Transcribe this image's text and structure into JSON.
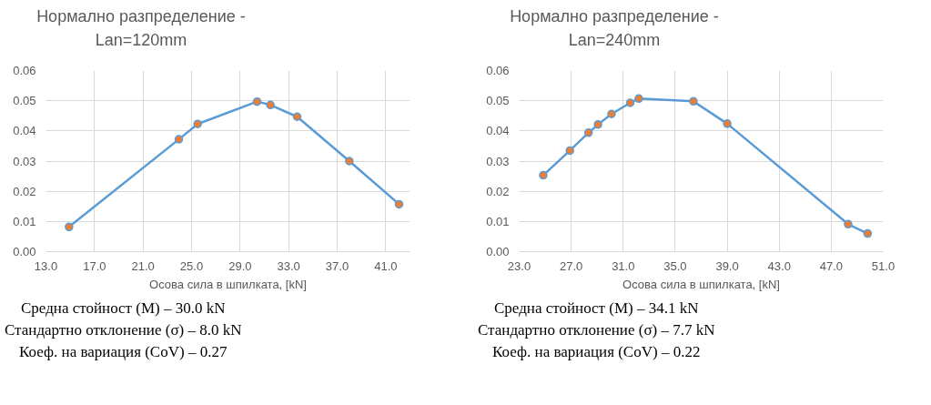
{
  "chart_data": [
    {
      "type": "line",
      "title": "Нормално разпределение - Lan=120mm",
      "xlabel": "Осова сила в шпилката, [kN]",
      "x": [
        14.9,
        23.95,
        25.5,
        30.4,
        31.5,
        33.7,
        38.0,
        42.1
      ],
      "series": [
        {
          "color": "#5b9bd5",
          "colors": [
            "#ed7d31",
            "#ed7d31",
            "#ed7d31",
            "#ed7d31",
            "#ed7d31",
            "#ed7d31",
            "#ed7d31",
            "#ed7d31"
          ],
          "values": [
            0.0082,
            0.0372,
            0.0423,
            0.0497,
            0.0486,
            0.0447,
            0.03,
            0.0157
          ]
        }
      ],
      "xlim": [
        13,
        43
      ],
      "xticks": [
        {
          "value": 13,
          "label": "13.0"
        },
        {
          "value": 17,
          "label": "17.0"
        },
        {
          "value": 21,
          "label": "21.0"
        },
        {
          "value": 25,
          "label": "25.0"
        },
        {
          "value": 29,
          "label": "29.0"
        },
        {
          "value": 33,
          "label": "33.0"
        },
        {
          "value": 37,
          "label": "37.0"
        },
        {
          "value": 41,
          "label": "41.0"
        }
      ],
      "ylim": [
        0,
        0.06
      ],
      "yticks": [
        {
          "value": 0,
          "label": "0.00"
        },
        {
          "value": 0.01,
          "label": "0.01"
        },
        {
          "value": 0.02,
          "label": "0.02"
        },
        {
          "value": 0.03,
          "label": "0.03"
        },
        {
          "value": 0.04,
          "label": "0.04"
        },
        {
          "value": 0.05,
          "label": "0.05"
        },
        {
          "value": 0.06,
          "label": "0.06"
        }
      ],
      "grid": true,
      "marker": "circle",
      "line_style": "solid",
      "annotations": [
        "Средна стойност (М) – 30.0 kN",
        "Стандартно отклонение (σ) – 8.0 kN",
        "Коеф. на вариация (CoV) – 0.27"
      ]
    },
    {
      "type": "line",
      "title": "Нормално разпределение - Lan=240mm",
      "xlabel": "Осова сила в шпилката, [kN]",
      "x": [
        24.85,
        26.9,
        28.33,
        29.06,
        30.1,
        31.54,
        32.2,
        36.4,
        39.0,
        48.3,
        49.8
      ],
      "series": [
        {
          "color": "#5b9bd5",
          "colors": [
            "#ed7d31",
            "#ed7d31",
            "#ed7d31",
            "#ed7d31",
            "#ed7d31",
            "#ed7d31",
            "#ed7d31",
            "#ed7d31",
            "#ed7d31",
            "#ed7d31",
            "#ed7d31"
          ],
          "values": [
            0.0253,
            0.0335,
            0.0394,
            0.0421,
            0.0456,
            0.0493,
            0.0507,
            0.0498,
            0.0424,
            0.0091,
            0.006
          ]
        }
      ],
      "xlim": [
        23,
        51
      ],
      "xticks": [
        {
          "value": 23,
          "label": "23.0"
        },
        {
          "value": 27,
          "label": "27.0"
        },
        {
          "value": 31,
          "label": "31.0"
        },
        {
          "value": 35,
          "label": "35.0"
        },
        {
          "value": 39,
          "label": "39.0"
        },
        {
          "value": 43,
          "label": "43.0"
        },
        {
          "value": 47,
          "label": "47.0"
        },
        {
          "value": 51,
          "label": "51.0"
        }
      ],
      "ylim": [
        0,
        0.06
      ],
      "yticks": [
        {
          "value": 0,
          "label": "0.00"
        },
        {
          "value": 0.01,
          "label": "0.01"
        },
        {
          "value": 0.02,
          "label": "0.02"
        },
        {
          "value": 0.03,
          "label": "0.03"
        },
        {
          "value": 0.04,
          "label": "0.04"
        },
        {
          "value": 0.05,
          "label": "0.05"
        },
        {
          "value": 0.06,
          "label": "0.06"
        }
      ],
      "grid": true,
      "marker": "circle",
      "line_style": "solid",
      "annotations": [
        "Средна стойност (М) – 34.1 kN",
        "Стандартно отклонение (σ) – 7.7 kN",
        "Коеф. на вариация (CoV) – 0.22"
      ]
    }
  ]
}
